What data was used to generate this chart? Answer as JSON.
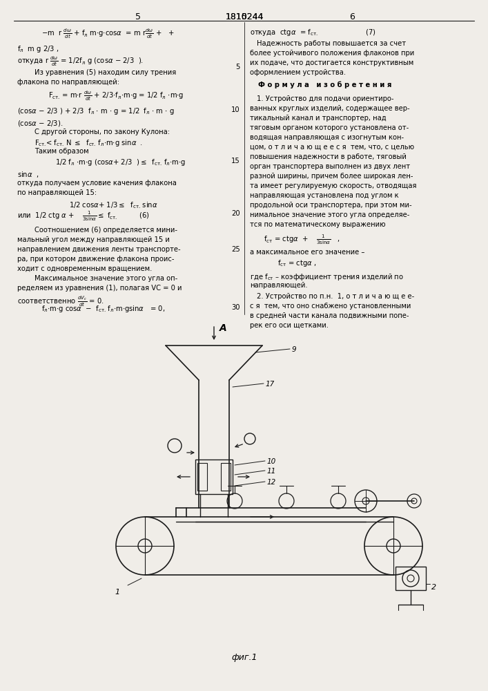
{
  "page_width": 7.07,
  "page_height": 10.0,
  "bg_color": "#f0ede8",
  "header_left_num": "5",
  "header_center": "1810244",
  "header_right_num": "6",
  "fig_caption": "фиг.1"
}
